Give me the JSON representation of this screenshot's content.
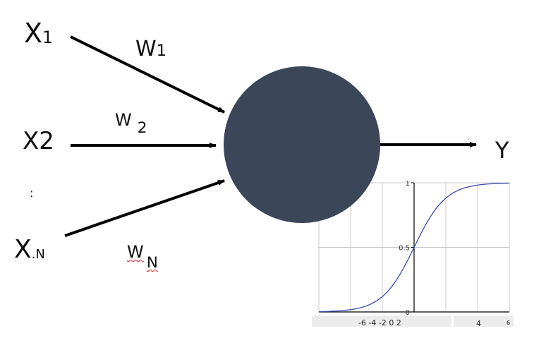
{
  "inputs": [
    {
      "main": "X",
      "sub": "1"
    },
    {
      "main": "X",
      "sub": "2"
    },
    {
      "main": "X",
      "sub": ".N"
    }
  ],
  "ellipsis": ":",
  "weights": [
    {
      "main": "W",
      "sub": "1"
    },
    {
      "main": "W",
      "sub": "2"
    },
    {
      "main": "W",
      "sub": "N"
    }
  ],
  "output": "Y",
  "colors": {
    "neuron": "#3b4659",
    "arrow": "#000000",
    "curve": "#3b4ab0",
    "grid": "#c8c8c8"
  },
  "chart_data": {
    "type": "line",
    "function": "sigmoid",
    "x": [
      -6,
      -5,
      -4,
      -3,
      -2,
      -1,
      0,
      1,
      2,
      3,
      4,
      5,
      6
    ],
    "y": [
      0.0025,
      0.0067,
      0.018,
      0.047,
      0.119,
      0.269,
      0.5,
      0.731,
      0.881,
      0.953,
      0.982,
      0.993,
      0.9975
    ],
    "xlim": [
      -6,
      6
    ],
    "ylim": [
      0,
      1
    ],
    "ytick_labels": [
      "0",
      "0.5",
      "1"
    ],
    "xtick_label_text": "-6 -4 -2 0 2",
    "xtick_label_right": "4",
    "xtick_label_far": "6",
    "grid": true
  }
}
